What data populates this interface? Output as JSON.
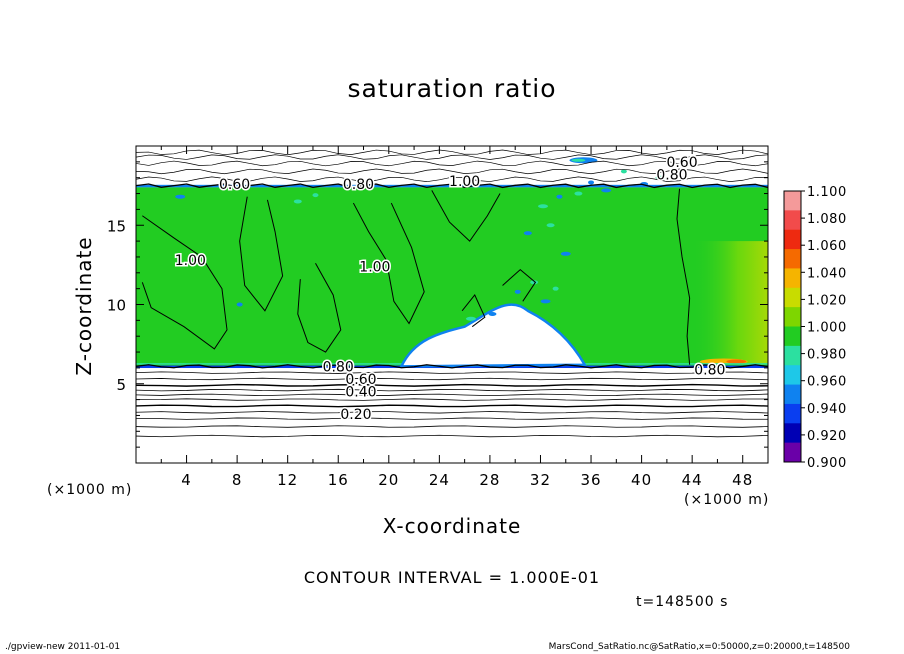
{
  "chart_data": {
    "type": "heatmap",
    "title": "saturation ratio",
    "xlabel": "X-coordinate",
    "ylabel": "Z-coordinate",
    "x_unit": "(×1000 m)",
    "z_unit": "(×1000 m)",
    "xlim": [
      0,
      50
    ],
    "ylim": [
      0,
      20
    ],
    "x_ticks": [
      "4",
      "8",
      "12",
      "16",
      "20",
      "24",
      "28",
      "32",
      "36",
      "40",
      "44",
      "48"
    ],
    "x_tick_values": [
      4,
      8,
      12,
      16,
      20,
      24,
      28,
      32,
      36,
      40,
      44,
      48
    ],
    "y_ticks": [
      "5",
      "10",
      "15"
    ],
    "y_tick_values": [
      5,
      10,
      15
    ],
    "colorbar": {
      "labels": [
        "1.100",
        "1.080",
        "1.060",
        "1.040",
        "1.020",
        "1.000",
        "0.980",
        "0.960",
        "0.940",
        "0.920",
        "0.900"
      ],
      "colors": [
        "#f49a9a",
        "#f24b4b",
        "#ee2a10",
        "#f56a00",
        "#f5b400",
        "#c8dc00",
        "#7ed600",
        "#22cc22",
        "#2ce0a0",
        "#1ec8e8",
        "#0f82f0",
        "#0a3ef0",
        "#0000b4",
        "#6a00a8"
      ]
    },
    "contour_labels": [
      {
        "text": "0.60",
        "x": 43.2,
        "z": 19.0
      },
      {
        "text": "0.60",
        "x": 7.8,
        "z": 17.6
      },
      {
        "text": "0.80",
        "x": 17.6,
        "z": 17.6
      },
      {
        "text": "1.00",
        "x": 26.0,
        "z": 17.8
      },
      {
        "text": "0.80",
        "x": 42.4,
        "z": 18.2
      },
      {
        "text": "1.00",
        "x": 4.3,
        "z": 12.8
      },
      {
        "text": "1.00",
        "x": 18.9,
        "z": 12.4
      },
      {
        "text": "0.80",
        "x": 16.0,
        "z": 6.1
      },
      {
        "text": "0.60",
        "x": 17.8,
        "z": 5.3
      },
      {
        "text": "0.40",
        "x": 17.8,
        "z": 4.5
      },
      {
        "text": "0.20",
        "x": 17.4,
        "z": 3.1
      },
      {
        "text": "0.80",
        "x": 45.4,
        "z": 5.9
      }
    ],
    "grid": false
  },
  "page": {
    "contour_interval": "CONTOUR INTERVAL = 1.000E-01",
    "time_label": "t=148500 s",
    "footer_left": "./gpview-new 2011-01-01",
    "footer_right": "MarsCond_SatRatio.nc@SatRatio,x=0:50000,z=0:20000,t=148500"
  }
}
